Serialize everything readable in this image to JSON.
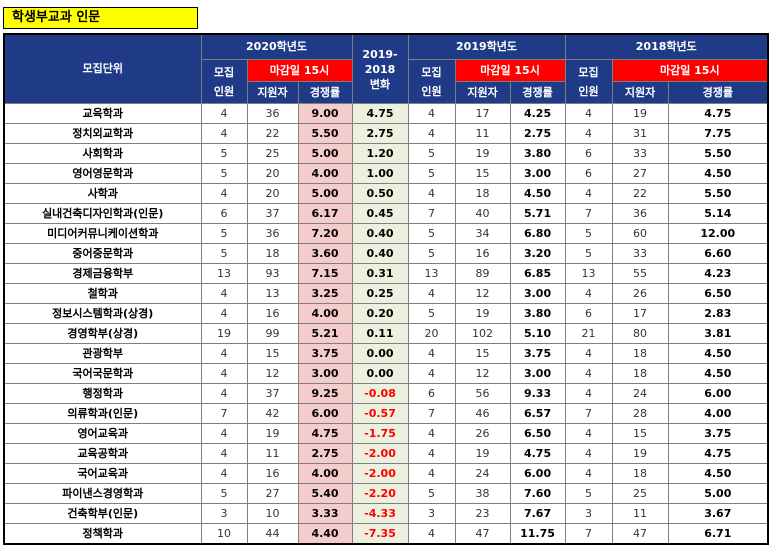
{
  "title": "학생부교과 인문",
  "header": {
    "unit": "모집단위",
    "y2020": "2020학년도",
    "diff_line1": "2019-",
    "diff_line2": "2018",
    "diff_line3": "변화",
    "y2019": "2019학년도",
    "y2018": "2018학년도",
    "quota_line1": "모집",
    "quota_line2": "인원",
    "deadline": "마감일 15시",
    "applicants": "지원자",
    "rate": "경쟁률"
  },
  "colors": {
    "header_bg": "#1f3a87",
    "deadline_bg": "#ff0000",
    "rate2020_bg": "#f4cccc",
    "diff_bg": "#ebf1de",
    "title_bg": "#ffff00",
    "negative": "#ff0000"
  },
  "rows": [
    {
      "name": "교육학과",
      "q20": "4",
      "a20": "36",
      "r20": "9.00",
      "diff": "4.75",
      "q19": "4",
      "a19": "17",
      "r19": "4.25",
      "q18": "4",
      "a18": "19",
      "r18": "4.75"
    },
    {
      "name": "정치외교학과",
      "q20": "4",
      "a20": "22",
      "r20": "5.50",
      "diff": "2.75",
      "q19": "4",
      "a19": "11",
      "r19": "2.75",
      "q18": "4",
      "a18": "31",
      "r18": "7.75"
    },
    {
      "name": "사회학과",
      "q20": "5",
      "a20": "25",
      "r20": "5.00",
      "diff": "1.20",
      "q19": "5",
      "a19": "19",
      "r19": "3.80",
      "q18": "6",
      "a18": "33",
      "r18": "5.50"
    },
    {
      "name": "영어영문학과",
      "q20": "5",
      "a20": "20",
      "r20": "4.00",
      "diff": "1.00",
      "q19": "5",
      "a19": "15",
      "r19": "3.00",
      "q18": "6",
      "a18": "27",
      "r18": "4.50"
    },
    {
      "name": "사학과",
      "q20": "4",
      "a20": "20",
      "r20": "5.00",
      "diff": "0.50",
      "q19": "4",
      "a19": "18",
      "r19": "4.50",
      "q18": "4",
      "a18": "22",
      "r18": "5.50"
    },
    {
      "name": "실내건축디자인학과(인문)",
      "q20": "6",
      "a20": "37",
      "r20": "6.17",
      "diff": "0.45",
      "q19": "7",
      "a19": "40",
      "r19": "5.71",
      "q18": "7",
      "a18": "36",
      "r18": "5.14"
    },
    {
      "name": "미디어커뮤니케이션학과",
      "q20": "5",
      "a20": "36",
      "r20": "7.20",
      "diff": "0.40",
      "q19": "5",
      "a19": "34",
      "r19": "6.80",
      "q18": "5",
      "a18": "60",
      "r18": "12.00"
    },
    {
      "name": "중어중문학과",
      "q20": "5",
      "a20": "18",
      "r20": "3.60",
      "diff": "0.40",
      "q19": "5",
      "a19": "16",
      "r19": "3.20",
      "q18": "5",
      "a18": "33",
      "r18": "6.60"
    },
    {
      "name": "경제금융학부",
      "q20": "13",
      "a20": "93",
      "r20": "7.15",
      "diff": "0.31",
      "q19": "13",
      "a19": "89",
      "r19": "6.85",
      "q18": "13",
      "a18": "55",
      "r18": "4.23"
    },
    {
      "name": "철학과",
      "q20": "4",
      "a20": "13",
      "r20": "3.25",
      "diff": "0.25",
      "q19": "4",
      "a19": "12",
      "r19": "3.00",
      "q18": "4",
      "a18": "26",
      "r18": "6.50"
    },
    {
      "name": "정보시스템학과(상경)",
      "q20": "4",
      "a20": "16",
      "r20": "4.00",
      "diff": "0.20",
      "q19": "5",
      "a19": "19",
      "r19": "3.80",
      "q18": "6",
      "a18": "17",
      "r18": "2.83"
    },
    {
      "name": "경영학부(상경)",
      "q20": "19",
      "a20": "99",
      "r20": "5.21",
      "diff": "0.11",
      "q19": "20",
      "a19": "102",
      "r19": "5.10",
      "q18": "21",
      "a18": "80",
      "r18": "3.81"
    },
    {
      "name": "관광학부",
      "q20": "4",
      "a20": "15",
      "r20": "3.75",
      "diff": "0.00",
      "q19": "4",
      "a19": "15",
      "r19": "3.75",
      "q18": "4",
      "a18": "18",
      "r18": "4.50"
    },
    {
      "name": "국어국문학과",
      "q20": "4",
      "a20": "12",
      "r20": "3.00",
      "diff": "0.00",
      "q19": "4",
      "a19": "12",
      "r19": "3.00",
      "q18": "4",
      "a18": "18",
      "r18": "4.50"
    },
    {
      "name": "행정학과",
      "q20": "4",
      "a20": "37",
      "r20": "9.25",
      "diff": "-0.08",
      "q19": "6",
      "a19": "56",
      "r19": "9.33",
      "q18": "4",
      "a18": "24",
      "r18": "6.00"
    },
    {
      "name": "의류학과(인문)",
      "q20": "7",
      "a20": "42",
      "r20": "6.00",
      "diff": "-0.57",
      "q19": "7",
      "a19": "46",
      "r19": "6.57",
      "q18": "7",
      "a18": "28",
      "r18": "4.00"
    },
    {
      "name": "영어교육과",
      "q20": "4",
      "a20": "19",
      "r20": "4.75",
      "diff": "-1.75",
      "q19": "4",
      "a19": "26",
      "r19": "6.50",
      "q18": "4",
      "a18": "15",
      "r18": "3.75"
    },
    {
      "name": "교육공학과",
      "q20": "4",
      "a20": "11",
      "r20": "2.75",
      "diff": "-2.00",
      "q19": "4",
      "a19": "19",
      "r19": "4.75",
      "q18": "4",
      "a18": "19",
      "r18": "4.75"
    },
    {
      "name": "국어교육과",
      "q20": "4",
      "a20": "16",
      "r20": "4.00",
      "diff": "-2.00",
      "q19": "4",
      "a19": "24",
      "r19": "6.00",
      "q18": "4",
      "a18": "18",
      "r18": "4.50"
    },
    {
      "name": "파이낸스경영학과",
      "q20": "5",
      "a20": "27",
      "r20": "5.40",
      "diff": "-2.20",
      "q19": "5",
      "a19": "38",
      "r19": "7.60",
      "q18": "5",
      "a18": "25",
      "r18": "5.00"
    },
    {
      "name": "건축학부(인문)",
      "q20": "3",
      "a20": "10",
      "r20": "3.33",
      "diff": "-4.33",
      "q19": "3",
      "a19": "23",
      "r19": "7.67",
      "q18": "3",
      "a18": "11",
      "r18": "3.67"
    },
    {
      "name": "정책학과",
      "q20": "10",
      "a20": "44",
      "r20": "4.40",
      "diff": "-7.35",
      "q19": "4",
      "a19": "47",
      "r19": "11.75",
      "q18": "7",
      "a18": "47",
      "r18": "6.71"
    }
  ]
}
